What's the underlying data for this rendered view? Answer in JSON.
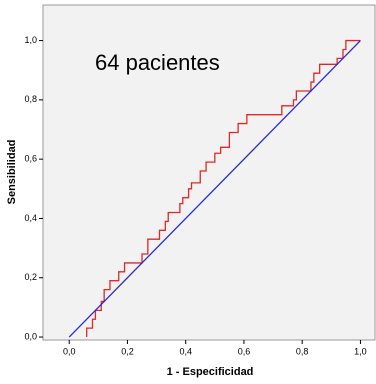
{
  "chart_data": {
    "type": "line",
    "annotation": "64 pacientes",
    "xlabel": "1 - Especificidad",
    "ylabel": "Sensibilidad",
    "xlim": [
      -0.09,
      1.05
    ],
    "ylim": [
      -0.01,
      1.12
    ],
    "xticks": [
      {
        "value": 0,
        "label": "0,0"
      },
      {
        "value": 0.2,
        "label": "0,2"
      },
      {
        "value": 0.4,
        "label": "0,4"
      },
      {
        "value": 0.6,
        "label": "0,6"
      },
      {
        "value": 0.8,
        "label": "0,8"
      },
      {
        "value": 1,
        "label": "1,0"
      }
    ],
    "yticks": [
      {
        "value": 0,
        "label": "0,0"
      },
      {
        "value": 0.2,
        "label": "0,2"
      },
      {
        "value": 0.4,
        "label": "0,4"
      },
      {
        "value": 0.6,
        "label": "0,6"
      },
      {
        "value": 0.8,
        "label": "0,8"
      },
      {
        "value": 1,
        "label": "1,0"
      }
    ],
    "series": [
      {
        "color": "#e02828",
        "x": [
          0.06,
          0.06,
          0.08,
          0.08,
          0.09,
          0.09,
          0.11,
          0.11,
          0.12,
          0.12,
          0.14,
          0.14,
          0.17,
          0.17,
          0.19,
          0.19,
          0.25,
          0.25,
          0.27,
          0.27,
          0.31,
          0.31,
          0.33,
          0.33,
          0.34,
          0.34,
          0.38,
          0.38,
          0.39,
          0.39,
          0.41,
          0.41,
          0.42,
          0.42,
          0.45,
          0.45,
          0.47,
          0.47,
          0.5,
          0.5,
          0.52,
          0.52,
          0.55,
          0.55,
          0.58,
          0.58,
          0.61,
          0.61,
          0.73,
          0.73,
          0.77,
          0.77,
          0.78,
          0.78,
          0.83,
          0.83,
          0.84,
          0.84,
          0.86,
          0.86,
          0.92,
          0.92,
          0.94,
          0.94,
          0.95,
          0.95,
          1.0
        ],
        "values": [
          0,
          0.03,
          0.03,
          0.06,
          0.06,
          0.09,
          0.09,
          0.12,
          0.12,
          0.16,
          0.16,
          0.19,
          0.19,
          0.22,
          0.22,
          0.25,
          0.25,
          0.28,
          0.28,
          0.33,
          0.33,
          0.36,
          0.36,
          0.39,
          0.39,
          0.42,
          0.42,
          0.45,
          0.45,
          0.47,
          0.47,
          0.5,
          0.5,
          0.52,
          0.52,
          0.56,
          0.56,
          0.59,
          0.59,
          0.62,
          0.62,
          0.64,
          0.64,
          0.69,
          0.69,
          0.72,
          0.72,
          0.75,
          0.75,
          0.78,
          0.78,
          0.8,
          0.8,
          0.83,
          0.83,
          0.86,
          0.86,
          0.89,
          0.89,
          0.92,
          0.92,
          0.94,
          0.94,
          0.97,
          0.97,
          1.0,
          1.0
        ]
      },
      {
        "color": "#2a2ad8",
        "x": [
          0,
          1
        ],
        "values": [
          0,
          1
        ]
      }
    ]
  }
}
